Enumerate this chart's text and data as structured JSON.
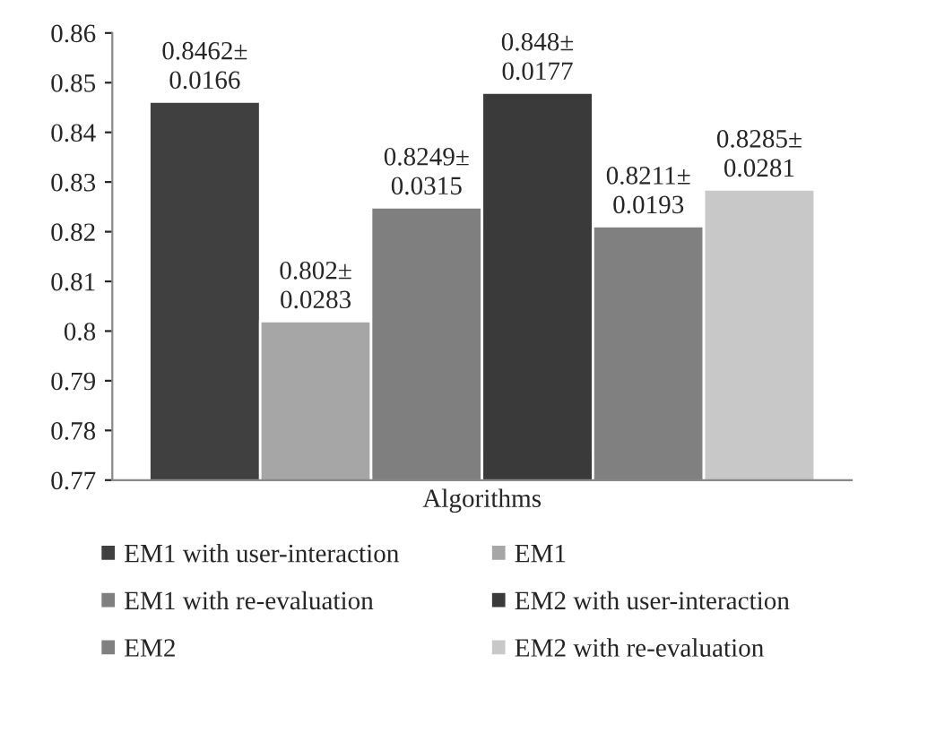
{
  "chart_data": {
    "type": "bar",
    "categories": [
      "Algorithms"
    ],
    "series": [
      {
        "name": "EM1 with user-interaction",
        "color": "#404040",
        "values": [
          0.8462
        ],
        "value_labels": [
          "0.8462±\n0.0166"
        ]
      },
      {
        "name": "EM1",
        "color": "#a6a6a6",
        "values": [
          0.802
        ],
        "value_labels": [
          "0.802±\n0.0283"
        ]
      },
      {
        "name": "EM1 with re-evaluation",
        "color": "#7f7f7f",
        "values": [
          0.8249
        ],
        "value_labels": [
          "0.8249±\n0.0315"
        ]
      },
      {
        "name": "EM2 with user-interaction",
        "color": "#3a3a3a",
        "values": [
          0.848
        ],
        "value_labels": [
          "0.848±\n0.0177"
        ]
      },
      {
        "name": "EM2",
        "color": "#808080",
        "values": [
          0.8211
        ],
        "value_labels": [
          "0.8211±\n0.0193"
        ]
      },
      {
        "name": "EM2 with re-evaluation",
        "color": "#c8c8c8",
        "values": [
          0.8285
        ],
        "value_labels": [
          "0.8285±\n0.0281"
        ]
      }
    ],
    "ylim": [
      0.77,
      0.86
    ],
    "yticks": [
      0.77,
      0.78,
      0.79,
      0.8,
      0.81,
      0.82,
      0.83,
      0.84,
      0.85,
      0.86
    ],
    "grid": false,
    "legend": "bottom"
  }
}
